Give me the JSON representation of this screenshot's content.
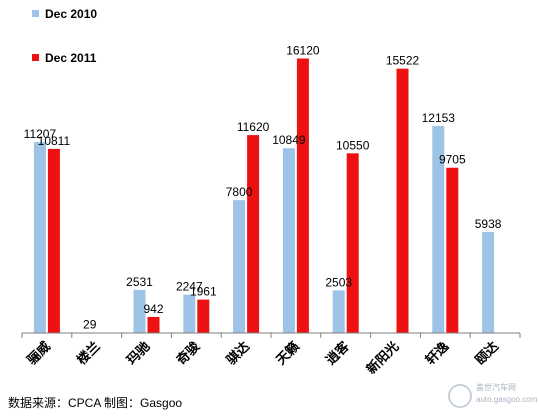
{
  "chart_data": {
    "type": "bar",
    "categories": [
      "骊威",
      "楼兰",
      "玛驰",
      "奇骏",
      "骐达",
      "天籁",
      "逍客",
      "新阳光",
      "轩逸",
      "颐达"
    ],
    "series": [
      {
        "name": "Dec 2010",
        "values": [
          11207,
          29,
          2531,
          2247,
          7800,
          10849,
          2503,
          null,
          12153,
          5938
        ]
      },
      {
        "name": "Dec 2011",
        "values": [
          10811,
          null,
          942,
          1961,
          11620,
          16120,
          10550,
          15522,
          9705,
          null
        ]
      }
    ],
    "value_labels": [
      [
        "11207",
        "29",
        "2531",
        "2247",
        "7800",
        "10849",
        "2503",
        "",
        "12153",
        "5938"
      ],
      [
        "10811",
        "",
        "942",
        "1961",
        "11620",
        "16120",
        "10550",
        "15522",
        "9705",
        ""
      ]
    ],
    "ylim": [
      0,
      16500
    ],
    "grid": false,
    "legend_position": "top-left",
    "title": "",
    "xlabel": "",
    "ylabel": ""
  },
  "colors": {
    "dec2010": "#9dc3e6",
    "dec2011": "#ee1111",
    "axis": "#808080"
  },
  "source_text": "数据来源：CPCA  制图：Gasgoo",
  "watermark": {
    "line1": "盖世汽车网",
    "line2": "auto.gasgoo.com"
  }
}
